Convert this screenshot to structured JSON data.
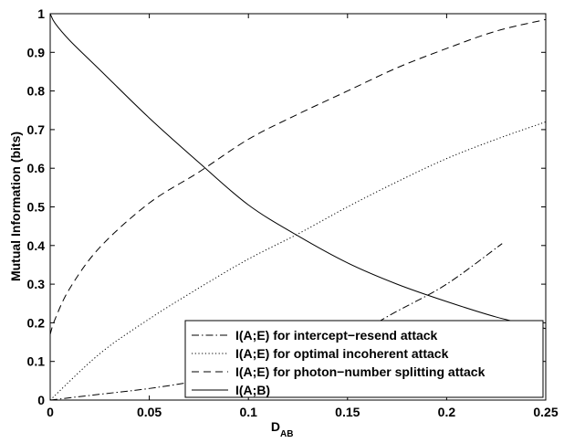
{
  "chart_data": {
    "type": "line",
    "xlabel": "D",
    "xlabel_sub": "AB",
    "ylabel": "Mutual Information (bits)",
    "xlim": [
      0,
      0.25
    ],
    "ylim": [
      0,
      1
    ],
    "xticks": [
      0,
      0.05,
      0.1,
      0.15,
      0.2,
      0.25
    ],
    "xtick_labels": [
      "0",
      "0.05",
      "0.1",
      "0.15",
      "0.2",
      "0.25"
    ],
    "yticks": [
      0,
      0.1,
      0.2,
      0.3,
      0.4,
      0.5,
      0.6,
      0.7,
      0.8,
      0.9,
      1
    ],
    "ytick_labels": [
      "0",
      "0.1",
      "0.2",
      "0.3",
      "0.4",
      "0.5",
      "0.6",
      "0.7",
      "0.8",
      "0.9",
      "1"
    ],
    "grid": false,
    "legend_position": "bottom-right",
    "series": [
      {
        "name": "I(A;E) for intercept−resend attack",
        "style": "dashdot",
        "x": [
          0,
          0.025,
          0.05,
          0.075,
          0.1,
          0.125,
          0.15,
          0.175,
          0.2,
          0.228
        ],
        "y": [
          0,
          0.015,
          0.03,
          0.05,
          0.075,
          0.11,
          0.16,
          0.23,
          0.3,
          0.405
        ]
      },
      {
        "name": "I(A;E) for optimal incoherent attack",
        "style": "dotted",
        "x": [
          0,
          0.025,
          0.05,
          0.075,
          0.1,
          0.125,
          0.15,
          0.175,
          0.2,
          0.225,
          0.25
        ],
        "y": [
          0,
          0.12,
          0.21,
          0.29,
          0.365,
          0.43,
          0.5,
          0.565,
          0.625,
          0.675,
          0.72
        ]
      },
      {
        "name": "I(A;E) for photon−number splitting attack",
        "style": "dashed",
        "x": [
          0,
          0.0025,
          0.01,
          0.025,
          0.05,
          0.075,
          0.1,
          0.125,
          0.15,
          0.175,
          0.2,
          0.225,
          0.25
        ],
        "y": [
          0.17,
          0.21,
          0.29,
          0.395,
          0.51,
          0.59,
          0.675,
          0.74,
          0.8,
          0.86,
          0.91,
          0.955,
          0.985
        ]
      },
      {
        "name": "I(A;B)",
        "style": "solid",
        "x": [
          0,
          0.0025,
          0.01,
          0.025,
          0.05,
          0.075,
          0.1,
          0.125,
          0.15,
          0.175,
          0.2,
          0.225,
          0.25
        ],
        "y": [
          1,
          0.975,
          0.93,
          0.855,
          0.73,
          0.615,
          0.505,
          0.425,
          0.355,
          0.3,
          0.255,
          0.215,
          0.185
        ]
      }
    ]
  }
}
